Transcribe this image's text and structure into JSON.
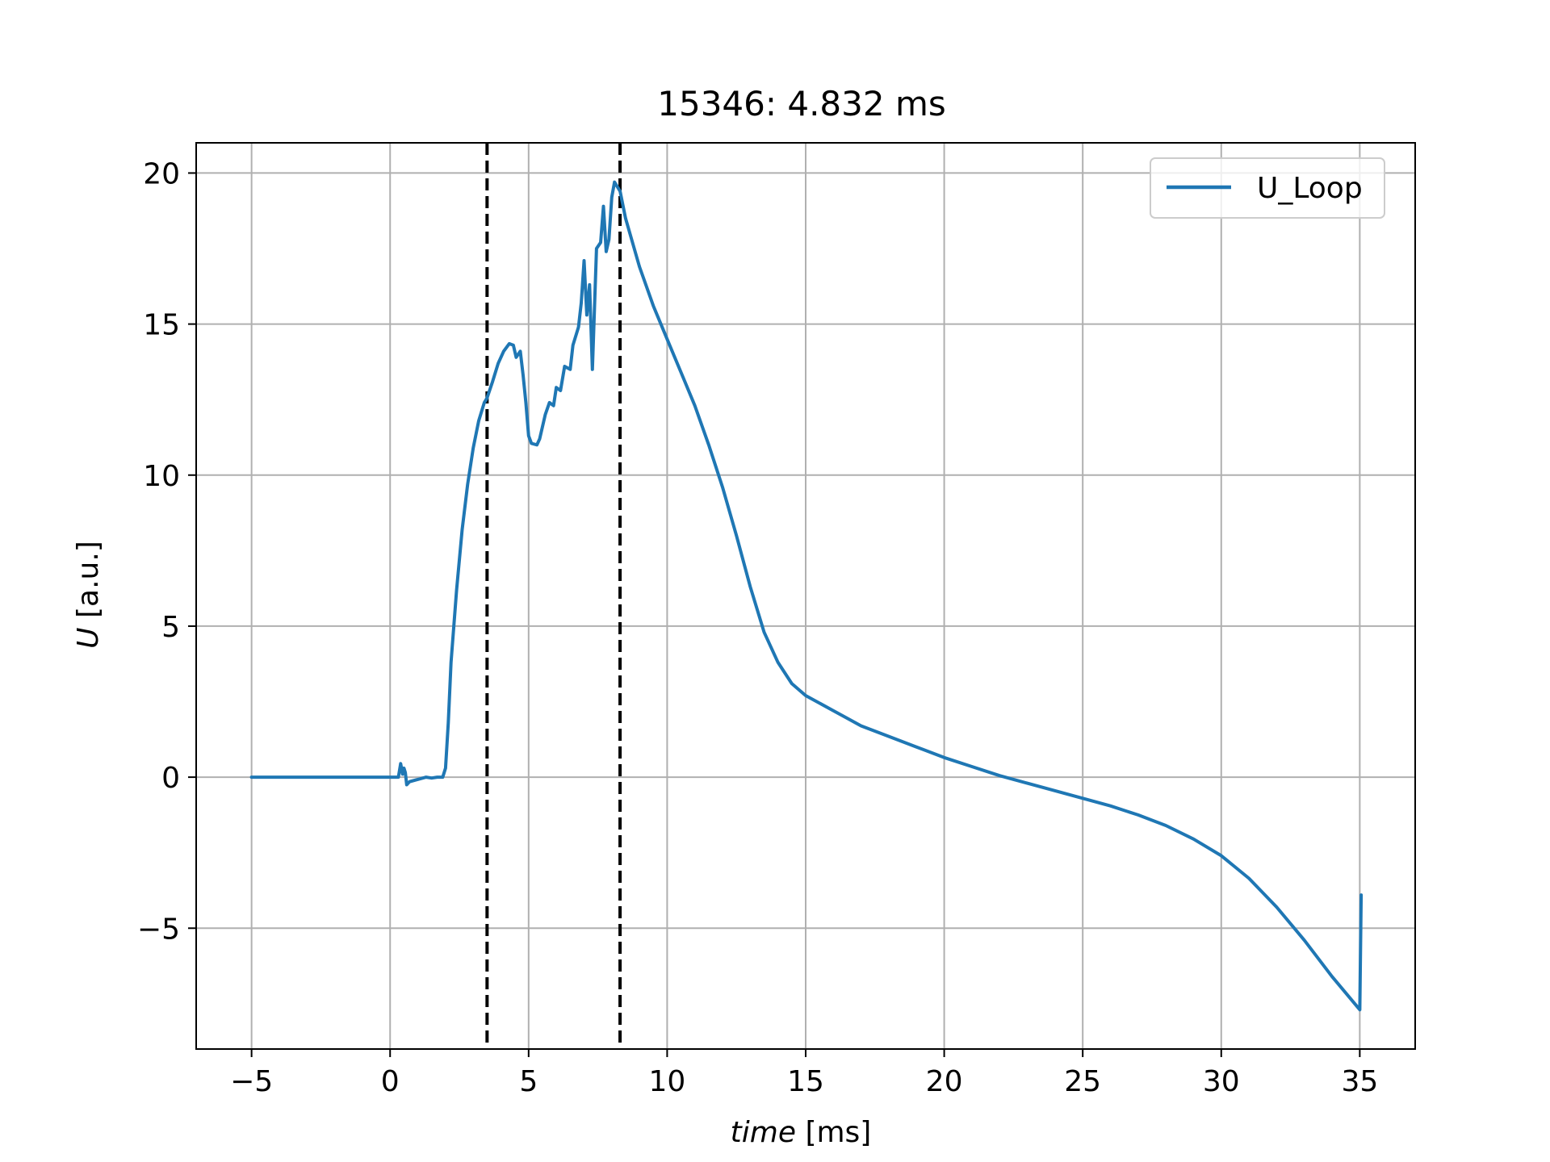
{
  "chart_data": {
    "type": "line",
    "title": "15346: 4.832 ms",
    "xlabel_italic": "time",
    "xlabel_unit": "[ms]",
    "ylabel_italic": "U",
    "ylabel_unit": "[a.u.]",
    "xlim": [
      -7,
      37
    ],
    "ylim": [
      -9,
      21
    ],
    "xticks": [
      -5,
      0,
      5,
      10,
      15,
      20,
      25,
      30,
      35
    ],
    "xtick_labels": [
      "−5",
      "0",
      "5",
      "10",
      "15",
      "20",
      "25",
      "30",
      "35"
    ],
    "yticks": [
      -5,
      0,
      5,
      10,
      15,
      20
    ],
    "ytick_labels": [
      "−5",
      "0",
      "5",
      "10",
      "15",
      "20"
    ],
    "grid": true,
    "legend_position": "top-right",
    "vlines": [
      3.5,
      8.3
    ],
    "series": [
      {
        "name": "U_Loop",
        "color": "#1f77b4",
        "points": [
          [
            -5,
            0
          ],
          [
            0,
            0
          ],
          [
            0.3,
            0
          ],
          [
            0.38,
            0.45
          ],
          [
            0.45,
            0.1
          ],
          [
            0.5,
            0.3
          ],
          [
            0.55,
            0.15
          ],
          [
            0.6,
            -0.25
          ],
          [
            0.7,
            -0.15
          ],
          [
            0.9,
            -0.1
          ],
          [
            1.1,
            -0.05
          ],
          [
            1.3,
            0.0
          ],
          [
            1.5,
            -0.03
          ],
          [
            1.7,
            0.0
          ],
          [
            1.9,
            0.0
          ],
          [
            2.0,
            0.3
          ],
          [
            2.1,
            1.8
          ],
          [
            2.2,
            3.8
          ],
          [
            2.4,
            6.2
          ],
          [
            2.6,
            8.2
          ],
          [
            2.8,
            9.7
          ],
          [
            3.0,
            10.9
          ],
          [
            3.2,
            11.8
          ],
          [
            3.4,
            12.4
          ],
          [
            3.5,
            12.55
          ],
          [
            3.7,
            13.1
          ],
          [
            3.9,
            13.7
          ],
          [
            4.1,
            14.1
          ],
          [
            4.3,
            14.35
          ],
          [
            4.45,
            14.3
          ],
          [
            4.55,
            13.9
          ],
          [
            4.7,
            14.1
          ],
          [
            4.8,
            13.3
          ],
          [
            4.9,
            12.4
          ],
          [
            5.0,
            11.3
          ],
          [
            5.1,
            11.05
          ],
          [
            5.3,
            11.0
          ],
          [
            5.4,
            11.2
          ],
          [
            5.6,
            12.0
          ],
          [
            5.75,
            12.4
          ],
          [
            5.9,
            12.3
          ],
          [
            6.0,
            12.9
          ],
          [
            6.15,
            12.8
          ],
          [
            6.3,
            13.6
          ],
          [
            6.5,
            13.5
          ],
          [
            6.6,
            14.3
          ],
          [
            6.8,
            14.9
          ],
          [
            6.9,
            15.7
          ],
          [
            7.0,
            17.1
          ],
          [
            7.1,
            15.3
          ],
          [
            7.2,
            16.3
          ],
          [
            7.3,
            13.5
          ],
          [
            7.45,
            17.5
          ],
          [
            7.6,
            17.7
          ],
          [
            7.7,
            18.9
          ],
          [
            7.8,
            17.4
          ],
          [
            7.9,
            17.8
          ],
          [
            8.0,
            19.2
          ],
          [
            8.1,
            19.7
          ],
          [
            8.3,
            19.4
          ],
          [
            8.5,
            18.5
          ],
          [
            9.0,
            16.9
          ],
          [
            9.5,
            15.6
          ],
          [
            10.0,
            14.5
          ],
          [
            10.5,
            13.4
          ],
          [
            11.0,
            12.3
          ],
          [
            11.5,
            11.0
          ],
          [
            12.0,
            9.6
          ],
          [
            12.5,
            8.0
          ],
          [
            13.0,
            6.3
          ],
          [
            13.5,
            4.8
          ],
          [
            14.0,
            3.8
          ],
          [
            14.5,
            3.1
          ],
          [
            15.0,
            2.7
          ],
          [
            16.0,
            2.2
          ],
          [
            17.0,
            1.7
          ],
          [
            18.0,
            1.35
          ],
          [
            19.0,
            1.0
          ],
          [
            20.0,
            0.65
          ],
          [
            21.0,
            0.35
          ],
          [
            22.0,
            0.05
          ],
          [
            23.0,
            -0.2
          ],
          [
            24.0,
            -0.45
          ],
          [
            25.0,
            -0.7
          ],
          [
            26.0,
            -0.95
          ],
          [
            27.0,
            -1.25
          ],
          [
            28.0,
            -1.6
          ],
          [
            29.0,
            -2.05
          ],
          [
            30.0,
            -2.6
          ],
          [
            31.0,
            -3.35
          ],
          [
            32.0,
            -4.3
          ],
          [
            33.0,
            -5.4
          ],
          [
            34.0,
            -6.6
          ],
          [
            35.0,
            -7.7
          ],
          [
            35.05,
            -3.9
          ]
        ]
      }
    ]
  }
}
